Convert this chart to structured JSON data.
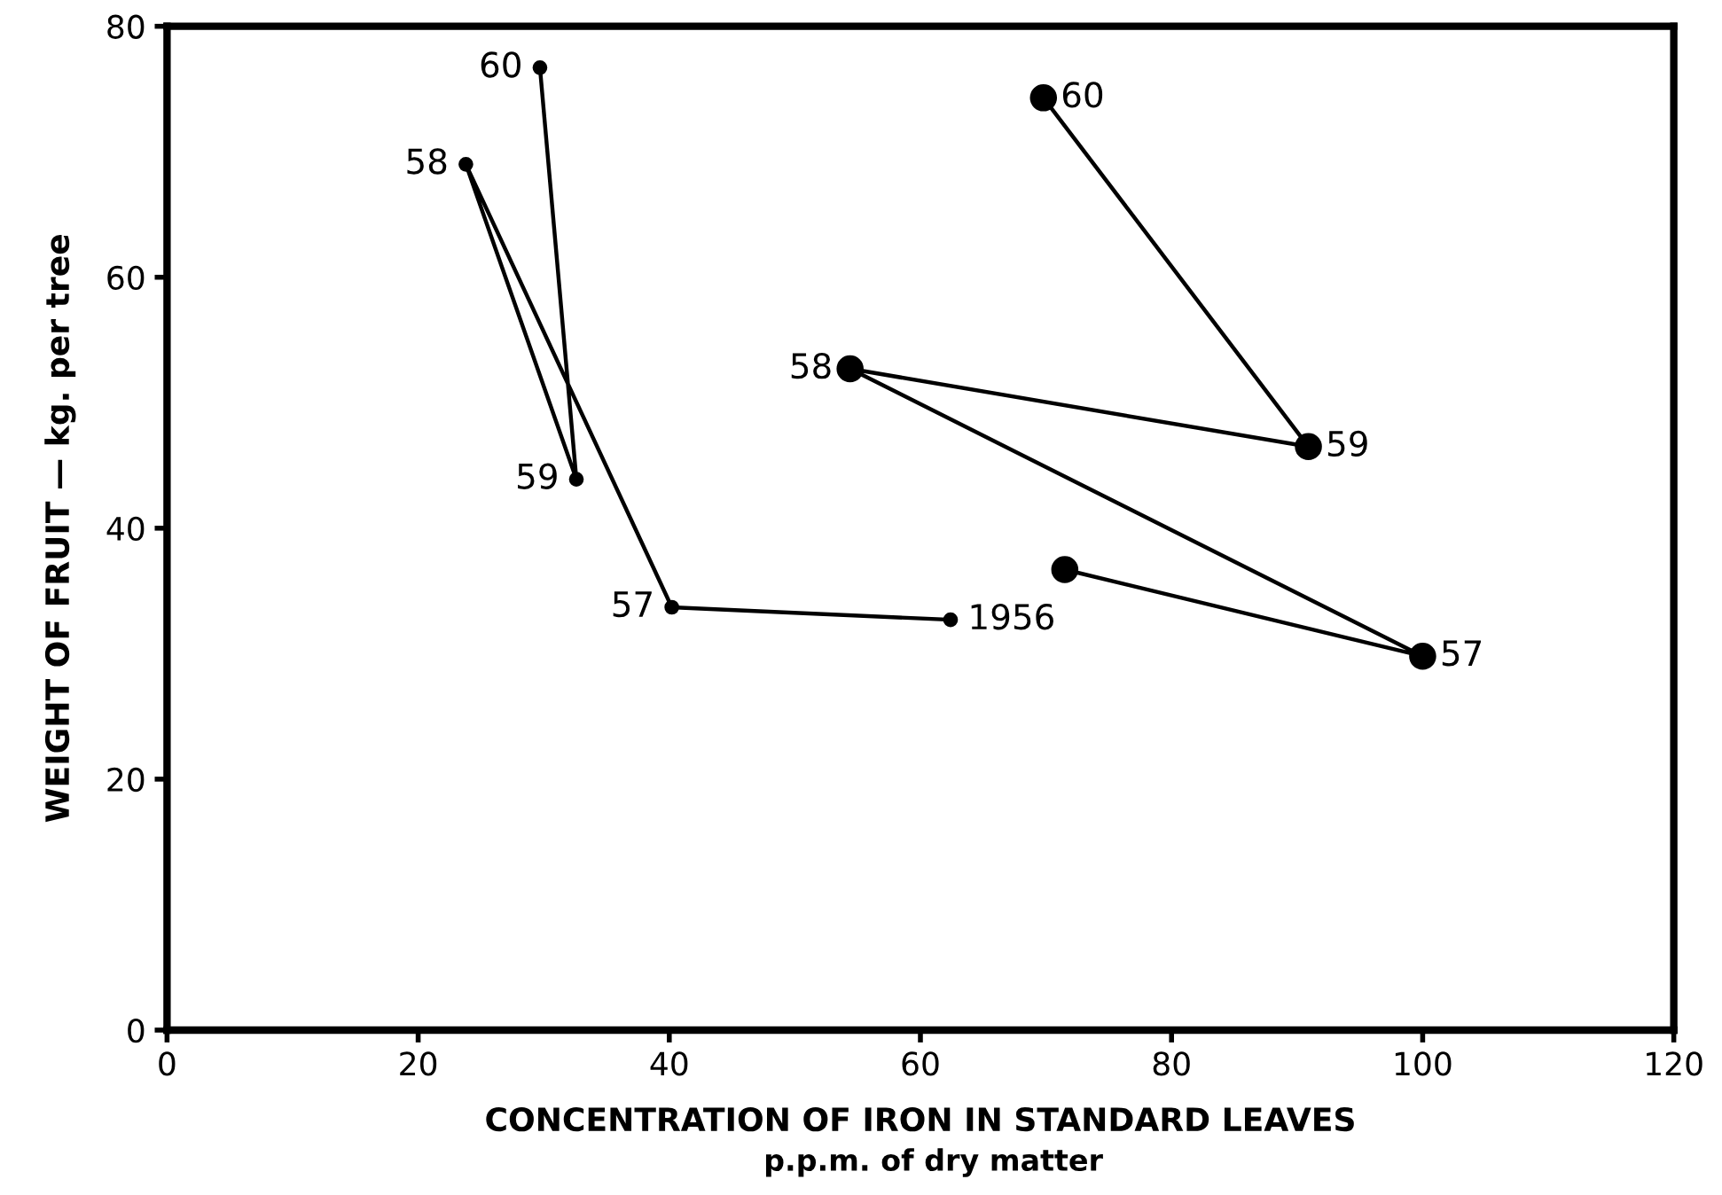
{
  "chart_data": {
    "type": "line",
    "xlabel": "CONCENTRATION OF IRON IN STANDARD LEAVES",
    "ylabel": "WEIGHT OF FRUIT — kg. per tree",
    "xlim": [
      0,
      120
    ],
    "xticks": [
      0,
      20,
      40,
      60,
      80,
      100,
      120
    ],
    "ylim": [
      0,
      80
    ],
    "yticks": [
      0,
      20,
      40,
      60,
      80
    ],
    "grid": false,
    "legend": false,
    "marker": "circle",
    "line_style": "solid",
    "series": [
      {
        "color": "#000000",
        "x": [
          62.4,
          40.2,
          23.8,
          32.6,
          29.7
        ],
        "values": [
          32.7,
          33.7,
          69,
          43.9,
          76.7
        ]
      },
      {
        "color": "#000000",
        "x": [
          71.5,
          100,
          54.4,
          90.9,
          69.8
        ],
        "values": [
          36.7,
          29.8,
          52.7,
          46.5,
          74.3
        ]
      }
    ],
    "annotations": [
      {
        "text": "1956",
        "x": 62.4,
        "y": 32.7
      },
      {
        "text": "57",
        "x": 40.2,
        "y": 33.7
      },
      {
        "text": "58",
        "x": 23.8,
        "y": 69
      },
      {
        "text": "59",
        "x": 32.6,
        "y": 43.9
      },
      {
        "text": "60",
        "x": 29.7,
        "y": 76.7
      },
      {
        "text": "57",
        "x": 100,
        "y": 29.8
      },
      {
        "text": "58",
        "x": 54.4,
        "y": 52.7
      },
      {
        "text": "59",
        "x": 90.9,
        "y": 46.5
      },
      {
        "text": "60",
        "x": 69.8,
        "y": 74.3
      },
      "p.p.m. of dry matter"
    ]
  }
}
